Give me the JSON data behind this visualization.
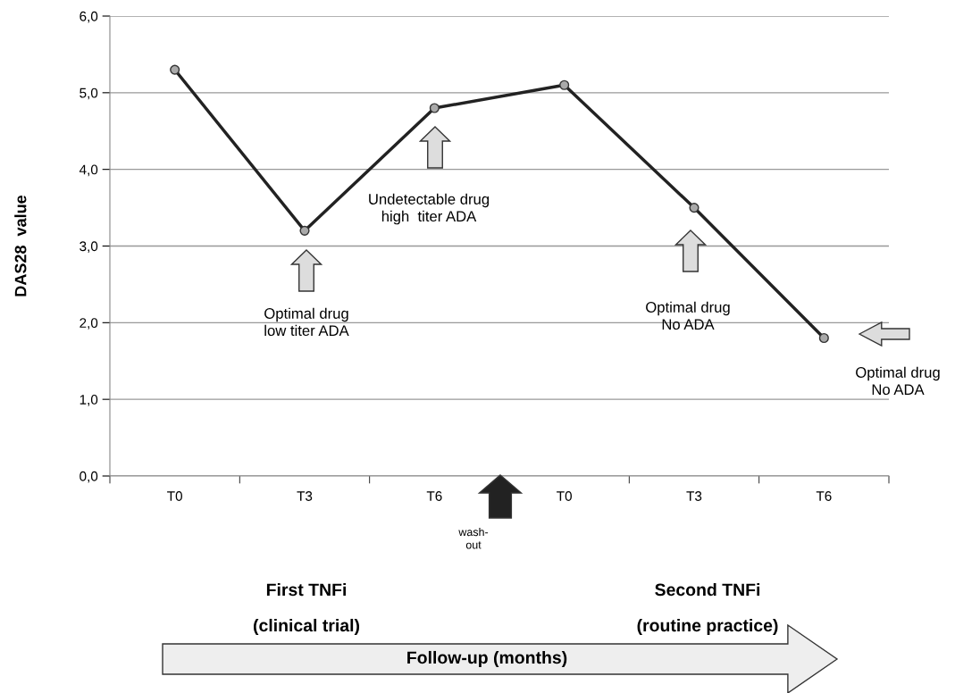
{
  "chart_data": {
    "type": "line",
    "ylabel": "DAS28  value",
    "categories": [
      "T0",
      "T3",
      "T6",
      "T0",
      "T3",
      "T6"
    ],
    "series": [
      {
        "color": "#222222",
        "values": [
          5.3,
          3.2,
          4.8,
          5.1,
          3.5,
          1.8
        ]
      }
    ],
    "ylim": [
      0,
      6
    ],
    "yticks": [
      {
        "value": 0,
        "label": "0,0"
      },
      {
        "value": 1,
        "label": "1,0"
      },
      {
        "value": 2,
        "label": "2,0"
      },
      {
        "value": 3,
        "label": "3,0"
      },
      {
        "value": 4,
        "label": "4,0"
      },
      {
        "value": 5,
        "label": "5,0"
      },
      {
        "value": 6,
        "label": "6,0"
      }
    ],
    "grid": "y",
    "marker": "circle",
    "line_style": "solid",
    "legend": false,
    "annotations": [
      "Optimal drug\nlow titer ADA",
      "Undetectable drug\nhigh  titer ADA",
      "Optimal drug\nNo ADA",
      "Optimal drug\nNo ADA",
      "wash-\nout",
      "First TNFi",
      "(clinical trial)",
      "Second TNFi",
      "(routine practice)",
      "Follow-up (months)"
    ]
  }
}
